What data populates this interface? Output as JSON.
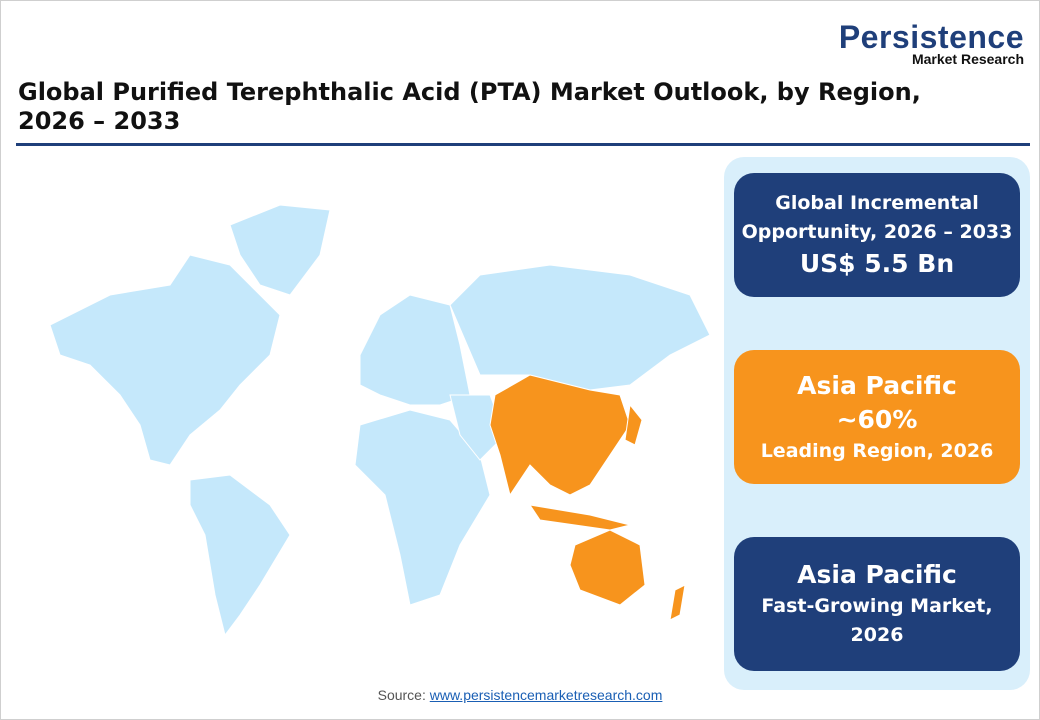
{
  "logo": {
    "name": "Persistence",
    "tagline": "Market Research"
  },
  "title": "Global Purified Terephthalic Acid (PTA) Market Outlook, by Region, 2026 – 2033",
  "map": {
    "base_color": "#c5e8fb",
    "highlight_color": "#f7941d",
    "highlighted_region": "Asia Pacific"
  },
  "cards": [
    {
      "line1": "Global Incremental",
      "line2": "Opportunity, 2026 – 2033",
      "value": "US$ 5.5 Bn",
      "color": "#1f3f7a"
    },
    {
      "region": "Asia Pacific",
      "value": "~60%",
      "caption": "Leading Region, 2026",
      "color": "#f7941d"
    },
    {
      "region": "Asia Pacific",
      "caption1": "Fast-Growing Market,",
      "caption2": "2026",
      "color": "#1f3f7a"
    }
  ],
  "source": {
    "label": "Source:",
    "link": "www.persistencemarketresearch.com"
  }
}
